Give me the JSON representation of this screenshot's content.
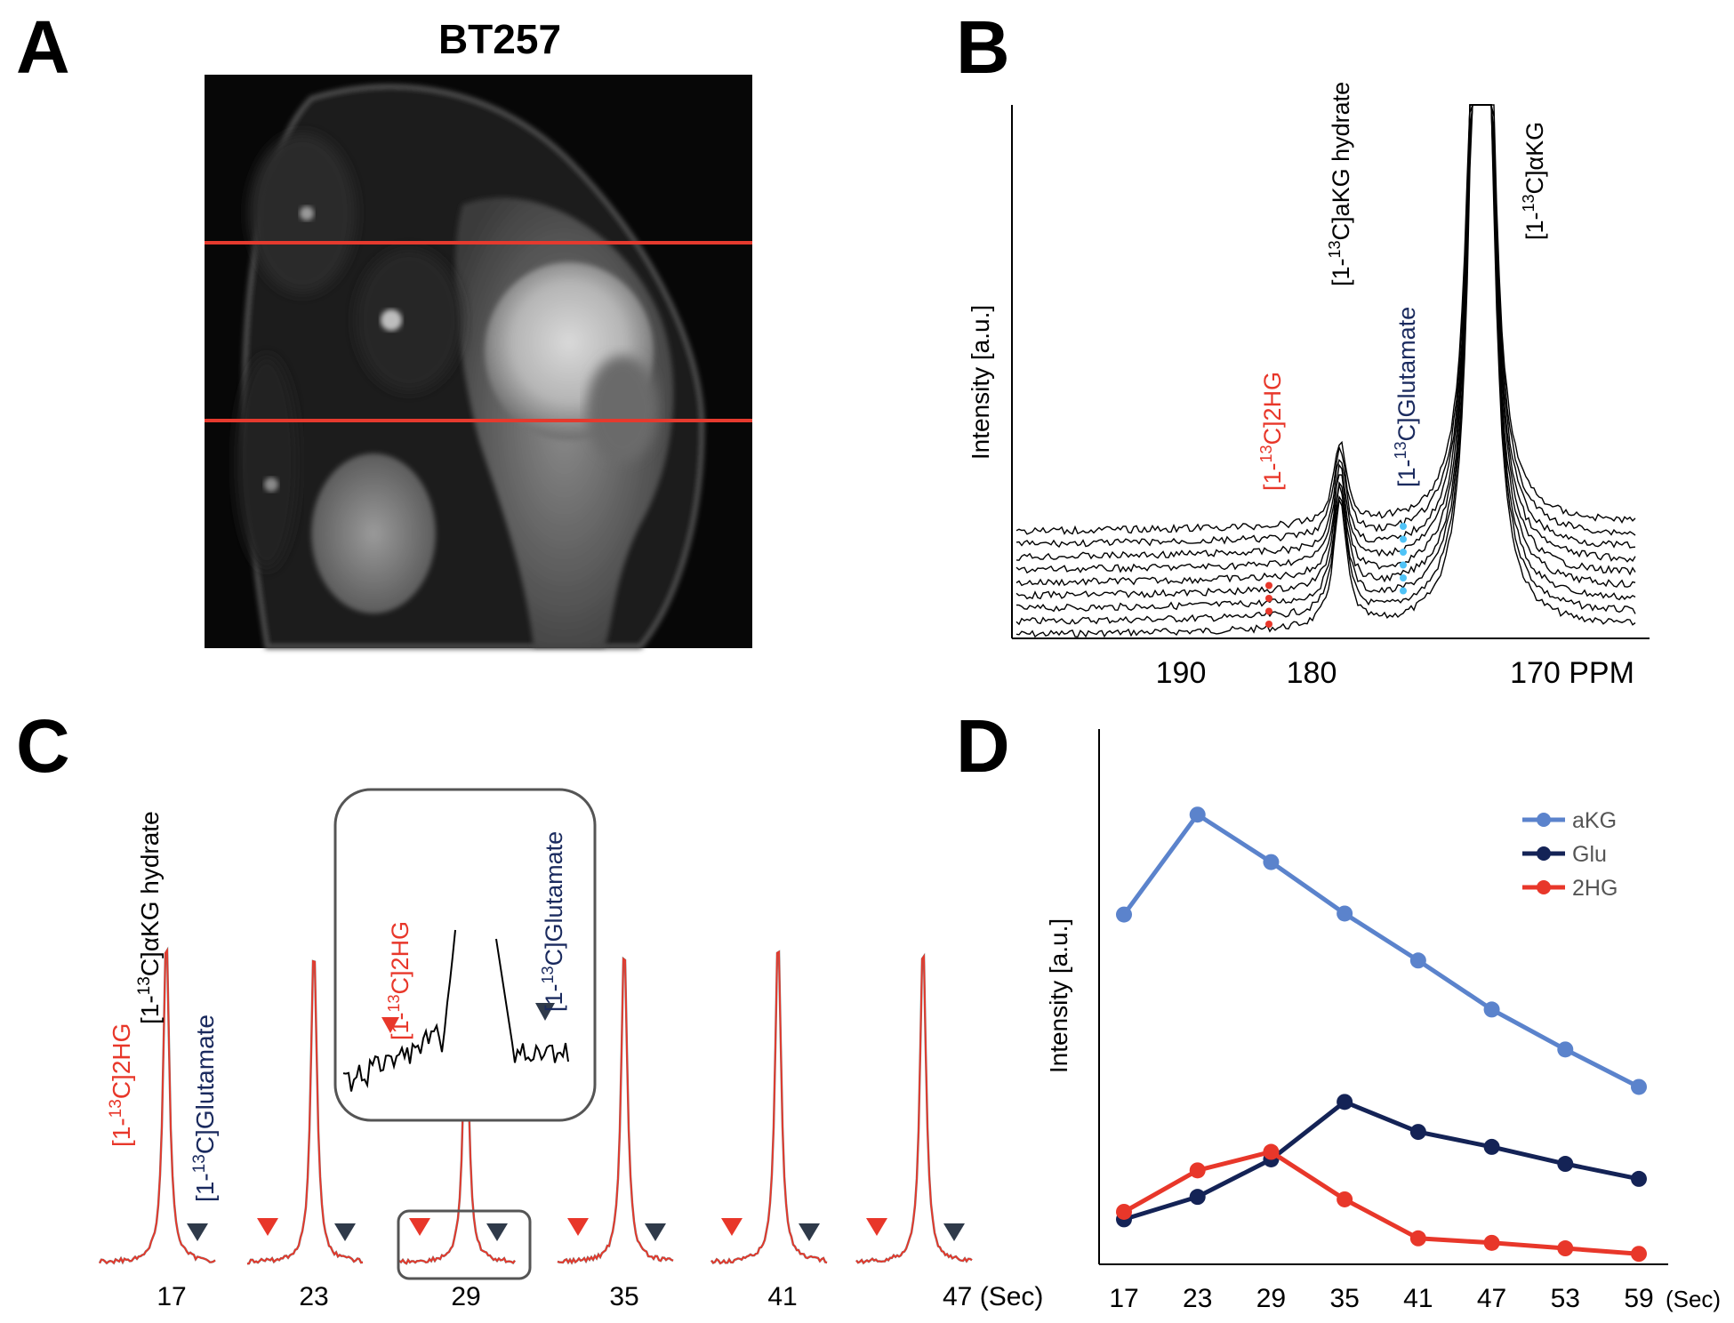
{
  "colors": {
    "red": "#e8372a",
    "navy": "#1a2a5e",
    "dark_marker": "#2f3a4a",
    "akg_blue": "#5b83cc",
    "glu_navy": "#142356",
    "hg_red": "#e8372a",
    "light_blue": "#4fc3f7",
    "mri_line": "#e53a2e"
  },
  "panel_a": {
    "label": "A",
    "title": "BT257",
    "image_name": "mri-axial-mouse-brain"
  },
  "panel_b": {
    "label": "B",
    "ylabel": "Intensity [a.u.]",
    "ticks": [
      "190",
      "180",
      "170 PPM"
    ],
    "peaks": {
      "hg_prefix": "[1-",
      "hg_sup": "13",
      "hg_suffix": "C]2HG",
      "hydrate_prefix": "[1-",
      "hydrate_sup": "13",
      "hydrate_suffix": "C]aKG hydrate",
      "glu_prefix": "[1-",
      "glu_sup": "13",
      "glu_suffix": "C]Glutamate",
      "akg_prefix": "[1-",
      "akg_sup": "13",
      "akg_suffix": "C]αKG"
    },
    "n_spectra": 9
  },
  "panel_c": {
    "label": "C",
    "times": [
      "17",
      "23",
      "29",
      "35",
      "41",
      "47 (Sec)"
    ],
    "labels": {
      "hydrate_prefix": "[1-",
      "hydrate_sup": "13",
      "hydrate_suffix": "C]αKG hydrate",
      "hg_prefix": "[1-",
      "hg_sup": "13",
      "hg_suffix": "C]2HG",
      "glu_prefix": "[1-",
      "glu_sup": "13",
      "glu_suffix": "C]Glutamate"
    },
    "inset": {
      "hg_prefix": "[1-",
      "hg_sup": "13",
      "hg_suffix": "C]2HG",
      "glu_prefix": "[1-",
      "glu_sup": "13",
      "glu_suffix": "C]Glutamate"
    }
  },
  "chart_data": {
    "type": "line",
    "title": "D",
    "xlabel": "(Sec)",
    "ylabel": "Intensity [a.u.]",
    "categories": [
      "17",
      "23",
      "29",
      "35",
      "41",
      "47",
      "53",
      "59"
    ],
    "ylim": [
      0,
      100
    ],
    "legend_position": "top-right",
    "series": [
      {
        "name": "aKG",
        "color": "#5b83cc",
        "values": [
          70,
          90,
          80.5,
          70.2,
          60.8,
          51,
          43,
          35.5
        ]
      },
      {
        "name": "Glu",
        "color": "#142356",
        "values": [
          9,
          13.5,
          21,
          32.5,
          26.5,
          23.5,
          20.1,
          17.1
        ]
      },
      {
        "name": "2HG",
        "color": "#e8372a",
        "values": [
          10.5,
          18.8,
          22.5,
          13,
          5.2,
          4.3,
          3.2,
          2.1
        ]
      }
    ]
  }
}
